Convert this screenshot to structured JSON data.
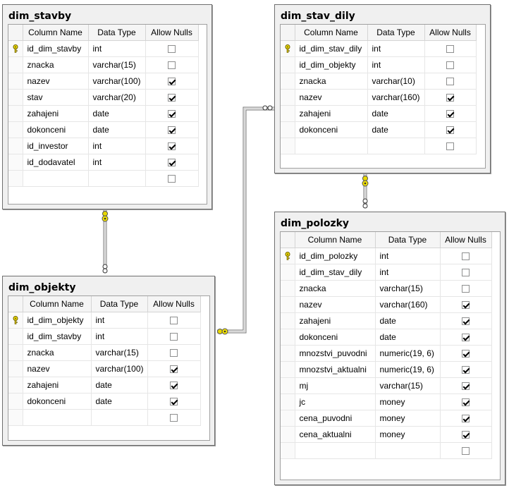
{
  "headers": {
    "column_name": "Column Name",
    "data_type": "Data Type",
    "allow_nulls": "Allow Nulls"
  },
  "tables": {
    "dim_stavby": {
      "title": "dim_stavby",
      "rows": [
        {
          "name": "id_dim_stavby",
          "type": "int",
          "nulls": false,
          "pk": true
        },
        {
          "name": "znacka",
          "type": "varchar(15)",
          "nulls": false,
          "pk": false
        },
        {
          "name": "nazev",
          "type": "varchar(100)",
          "nulls": true,
          "pk": false
        },
        {
          "name": "stav",
          "type": "varchar(20)",
          "nulls": true,
          "pk": false
        },
        {
          "name": "zahajeni",
          "type": "date",
          "nulls": true,
          "pk": false
        },
        {
          "name": "dokonceni",
          "type": "date",
          "nulls": true,
          "pk": false
        },
        {
          "name": "id_investor",
          "type": "int",
          "nulls": true,
          "pk": false
        },
        {
          "name": "id_dodavatel",
          "type": "int",
          "nulls": true,
          "pk": false
        }
      ]
    },
    "dim_stav_dily": {
      "title": "dim_stav_dily",
      "rows": [
        {
          "name": "id_dim_stav_dily",
          "type": "int",
          "nulls": false,
          "pk": true
        },
        {
          "name": "id_dim_objekty",
          "type": "int",
          "nulls": false,
          "pk": false
        },
        {
          "name": "znacka",
          "type": "varchar(10)",
          "nulls": false,
          "pk": false
        },
        {
          "name": "nazev",
          "type": "varchar(160)",
          "nulls": true,
          "pk": false
        },
        {
          "name": "zahajeni",
          "type": "date",
          "nulls": true,
          "pk": false
        },
        {
          "name": "dokonceni",
          "type": "date",
          "nulls": true,
          "pk": false
        }
      ]
    },
    "dim_objekty": {
      "title": "dim_objekty",
      "rows": [
        {
          "name": "id_dim_objekty",
          "type": "int",
          "nulls": false,
          "pk": true
        },
        {
          "name": "id_dim_stavby",
          "type": "int",
          "nulls": false,
          "pk": false
        },
        {
          "name": "znacka",
          "type": "varchar(15)",
          "nulls": false,
          "pk": false
        },
        {
          "name": "nazev",
          "type": "varchar(100)",
          "nulls": true,
          "pk": false
        },
        {
          "name": "zahajeni",
          "type": "date",
          "nulls": true,
          "pk": false
        },
        {
          "name": "dokonceni",
          "type": "date",
          "nulls": true,
          "pk": false
        }
      ]
    },
    "dim_polozky": {
      "title": "dim_polozky",
      "rows": [
        {
          "name": "id_dim_polozky",
          "type": "int",
          "nulls": false,
          "pk": true
        },
        {
          "name": "id_dim_stav_dily",
          "type": "int",
          "nulls": false,
          "pk": false
        },
        {
          "name": "znacka",
          "type": "varchar(15)",
          "nulls": false,
          "pk": false
        },
        {
          "name": "nazev",
          "type": "varchar(160)",
          "nulls": true,
          "pk": false
        },
        {
          "name": "zahajeni",
          "type": "date",
          "nulls": true,
          "pk": false
        },
        {
          "name": "dokonceni",
          "type": "date",
          "nulls": true,
          "pk": false
        },
        {
          "name": "mnozstvi_puvodni",
          "type": "numeric(19, 6)",
          "nulls": true,
          "pk": false
        },
        {
          "name": "mnozstvi_aktualni",
          "type": "numeric(19, 6)",
          "nulls": true,
          "pk": false
        },
        {
          "name": "mj",
          "type": "varchar(15)",
          "nulls": true,
          "pk": false
        },
        {
          "name": "jc",
          "type": "money",
          "nulls": true,
          "pk": false
        },
        {
          "name": "cena_puvodni",
          "type": "money",
          "nulls": true,
          "pk": false
        },
        {
          "name": "cena_aktualni",
          "type": "money",
          "nulls": true,
          "pk": false
        }
      ]
    }
  },
  "relationships": [
    {
      "from": "dim_stavby",
      "to": "dim_objekty"
    },
    {
      "from": "dim_stav_dily",
      "to": "dim_polozky"
    },
    {
      "from": "dim_objekty",
      "to": "dim_stav_dily"
    }
  ]
}
